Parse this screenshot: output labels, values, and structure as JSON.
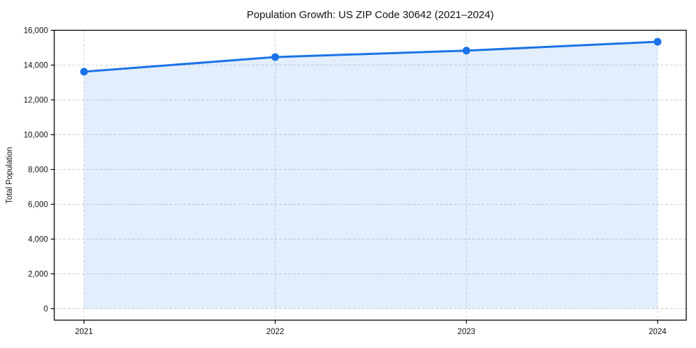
{
  "chart": {
    "title": "Population Growth: US ZIP Code 30642 (2021–2024)",
    "ylabel": "Total Population"
  },
  "chart_data": {
    "type": "line",
    "title": "Population Growth: US ZIP Code 30642 (2021–2024)",
    "xlabel": "",
    "ylabel": "Total Population",
    "x": [
      2021,
      2022,
      2023,
      2024
    ],
    "series": [
      {
        "name": "Total Population",
        "values": [
          13620,
          14460,
          14830,
          15340
        ]
      }
    ],
    "area_fill": true,
    "marker": "circle",
    "grid": true,
    "grid_style": "dashed",
    "legend_position": "none",
    "ylim": [
      -680,
      16000
    ],
    "yticks": [
      0,
      2000,
      4000,
      6000,
      8000,
      10000,
      12000,
      14000,
      16000
    ],
    "xticks": [
      "2021",
      "2022",
      "2023",
      "2024"
    ],
    "colors": {
      "line": "#1a73e8",
      "marker": "#1a73e8",
      "area": "rgba(26,115,232,0.12)",
      "grid": "#d0d0d0",
      "spine": "#000000",
      "text": "#111111",
      "background": "#ffffff"
    }
  }
}
